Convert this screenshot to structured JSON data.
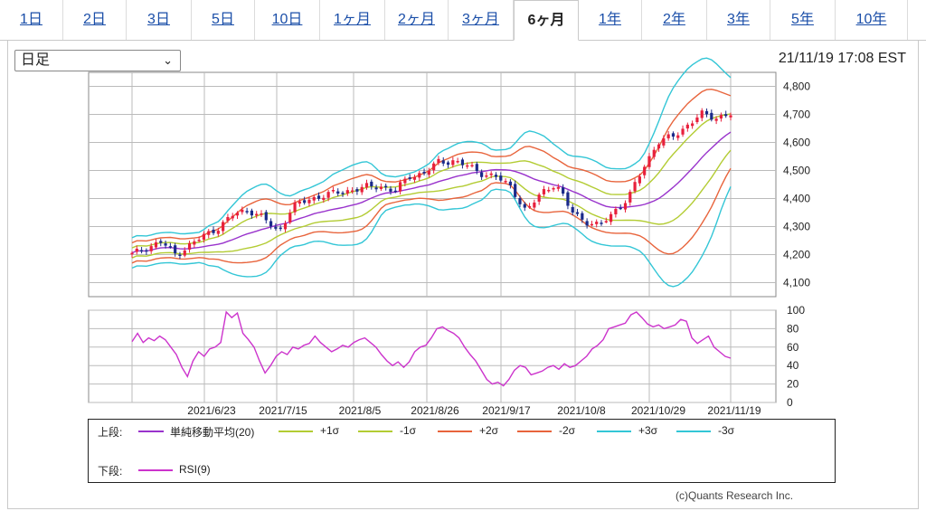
{
  "tabs": [
    {
      "label": "1日"
    },
    {
      "label": "2日"
    },
    {
      "label": "3日"
    },
    {
      "label": "5日"
    },
    {
      "label": "10日"
    },
    {
      "label": "1ヶ月"
    },
    {
      "label": "2ヶ月"
    },
    {
      "label": "3ヶ月"
    },
    {
      "label": "6ヶ月",
      "active": true
    },
    {
      "label": "1年"
    },
    {
      "label": "2年"
    },
    {
      "label": "3年"
    },
    {
      "label": "5年"
    },
    {
      "label": "10年"
    }
  ],
  "selector": {
    "value": "日足"
  },
  "timestamp": "21/11/19 17:08 EST",
  "credit": "(c)Quants Research Inc.",
  "legend": {
    "upper_label": "上段:",
    "lower_label": "下段:",
    "items": [
      {
        "name": "単純移動平均(20)",
        "color": "#9933cc"
      },
      {
        "name": "+1σ",
        "color": "#b3cc33"
      },
      {
        "name": "-1σ",
        "color": "#b3cc33"
      },
      {
        "name": "+2σ",
        "color": "#e8643c"
      },
      {
        "name": "-2σ",
        "color": "#e8643c"
      },
      {
        "name": "+3σ",
        "color": "#33c6d6"
      },
      {
        "name": "-3σ",
        "color": "#33c6d6"
      }
    ],
    "rsi": {
      "name": "RSI(9)",
      "color": "#cc33cc"
    }
  },
  "chart_data": [
    {
      "type": "candlestick",
      "x_labels": [
        "2021/6/23",
        "2021/7/15",
        "2021/8/5",
        "2021/8/26",
        "2021/9/17",
        "2021/10/8",
        "2021/10/29",
        "2021/11/19"
      ],
      "ylim": [
        4050,
        4850
      ],
      "y_ticks": [
        4100,
        4200,
        4300,
        4400,
        4500,
        4600,
        4700,
        4800
      ],
      "y_tick_labels": [
        "4,100",
        "4,200",
        "4,300",
        "4,400",
        "4,500",
        "4,600",
        "4,700",
        "4,800"
      ],
      "up_color": "#e8203c",
      "down_color": "#1a2a8a",
      "close_anchors": [
        4200,
        4225,
        4245,
        4200,
        4235,
        4270,
        4300,
        4345,
        4360,
        4330,
        4280,
        4370,
        4395,
        4410,
        4420,
        4430,
        4440,
        4445,
        4425,
        4480,
        4490,
        4530,
        4535,
        4515,
        4490,
        4475,
        4440,
        4350,
        4420,
        4455,
        4360,
        4320,
        4300,
        4355,
        4400,
        4510,
        4600,
        4620,
        4660,
        4700,
        4690,
        4700
      ]
    },
    {
      "type": "line",
      "name": "RSI(9)",
      "ylim": [
        0,
        100
      ],
      "y_ticks": [
        0,
        20,
        40,
        60,
        80,
        100
      ],
      "values": [
        66,
        75,
        65,
        70,
        67,
        72,
        68,
        60,
        52,
        38,
        28,
        45,
        55,
        50,
        58,
        60,
        65,
        98,
        92,
        97,
        75,
        68,
        60,
        45,
        32,
        40,
        50,
        55,
        52,
        60,
        58,
        62,
        64,
        72,
        65,
        60,
        55,
        58,
        62,
        60,
        65,
        68,
        70,
        65,
        60,
        52,
        45,
        40,
        44,
        38,
        44,
        55,
        60,
        62,
        70,
        80,
        82,
        78,
        75,
        70,
        60,
        52,
        45,
        35,
        25,
        20,
        22,
        18,
        25,
        35,
        40,
        38,
        30,
        32,
        34,
        38,
        40,
        36,
        42,
        38,
        40,
        45,
        50,
        58,
        62,
        68,
        80,
        82,
        84,
        86,
        95,
        98,
        92,
        85,
        82,
        84,
        80,
        82,
        84,
        90,
        88,
        70,
        64,
        68,
        72,
        60,
        55,
        50,
        48
      ]
    }
  ]
}
